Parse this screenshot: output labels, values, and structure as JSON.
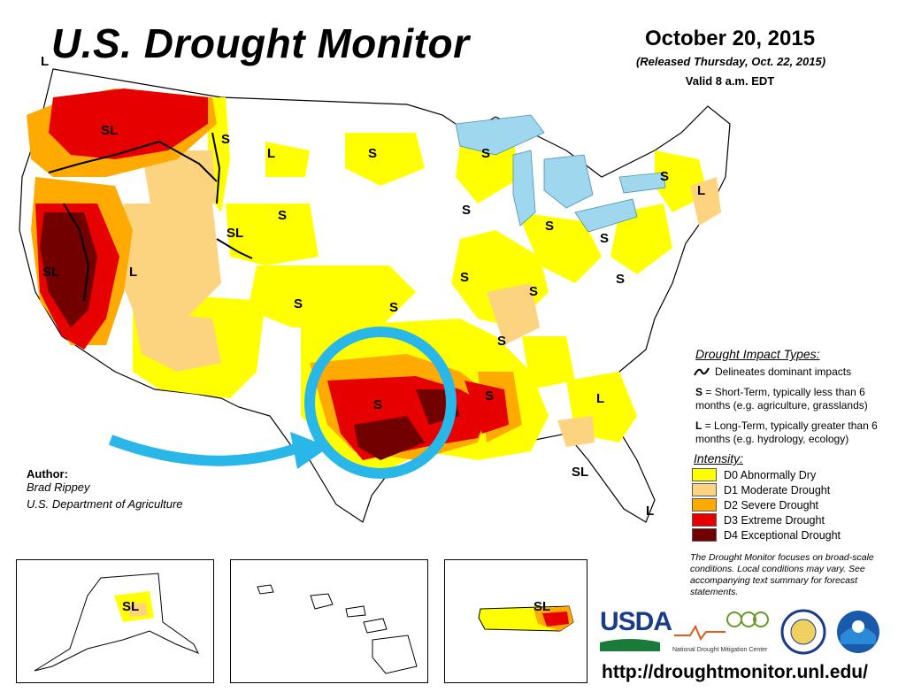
{
  "header": {
    "title": "U.S. Drought Monitor",
    "date": "October 20, 2015",
    "released": "(Released Thursday, Oct. 22, 2015)",
    "valid": "Valid 8 a.m. EDT"
  },
  "impact_types": {
    "heading": "Drought Impact Types:",
    "line_label": "Delineates dominant impacts",
    "short_term_key": "S",
    "short_term_text": " = Short-Term, typically less than 6 months (e.g. agriculture, grasslands)",
    "long_term_key": "L",
    "long_term_text": " = Long-Term, typically greater than 6 months (e.g. hydrology, ecology)"
  },
  "intensity": {
    "heading": "Intensity:",
    "levels": [
      {
        "label": "D0 Abnormally Dry",
        "color": "#ffff00"
      },
      {
        "label": "D1 Moderate Drought",
        "color": "#fcd37f"
      },
      {
        "label": "D2 Severe Drought",
        "color": "#ffaa00"
      },
      {
        "label": "D3 Extreme Drought",
        "color": "#e60000"
      },
      {
        "label": "D4 Exceptional Drought",
        "color": "#730000"
      }
    ]
  },
  "note": "The Drought Monitor focuses on broad-scale conditions. Local conditions may vary. See accompanying text summary for forecast statements.",
  "author": {
    "heading": "Author:",
    "name": "Brad Rippey",
    "org": "U.S. Department of Agriculture"
  },
  "map_labels": {
    "sl": "SL",
    "s": "S",
    "l": "L"
  },
  "logos": {
    "usda": "USDA",
    "ndmc": "National Drought Mitigation Center"
  },
  "url": "http://droughtmonitor.unl.edu/",
  "colors": {
    "water": "#9ed7ee",
    "highlight_circle": "#29b6e8"
  }
}
